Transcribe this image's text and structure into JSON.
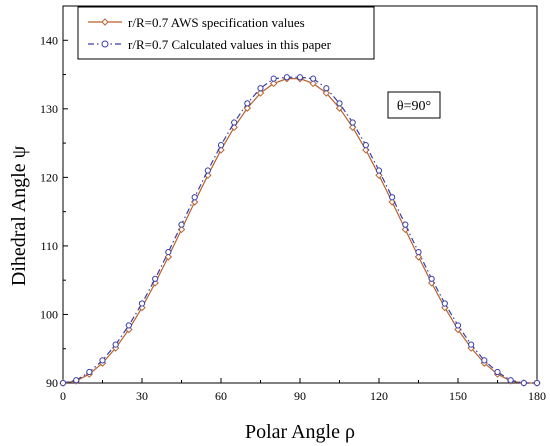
{
  "chart_data": {
    "type": "line",
    "title": "",
    "xlabel": "Polar Angle ρ",
    "ylabel": "Dihedral Angle ψ",
    "xlim": [
      0,
      180
    ],
    "ylim": [
      90,
      145
    ],
    "xticks": [
      0,
      30,
      60,
      90,
      120,
      150,
      180
    ],
    "yticks": [
      90,
      100,
      110,
      120,
      130,
      140
    ],
    "grid": false,
    "legend_position": "top-left",
    "annotation": "θ=90°",
    "series": [
      {
        "name": "r/R=0.7 AWS specification values",
        "color": "#b8612e",
        "line_style": "solid",
        "marker": "diamond",
        "x": [
          0,
          5,
          10,
          15,
          20,
          25,
          30,
          35,
          40,
          45,
          50,
          55,
          60,
          65,
          70,
          75,
          80,
          85,
          90,
          95,
          100,
          105,
          110,
          115,
          120,
          125,
          130,
          135,
          140,
          145,
          150,
          155,
          160,
          165,
          170,
          175,
          180
        ],
        "y": [
          90.0,
          90.3,
          91.3,
          92.9,
          95.1,
          97.8,
          101.0,
          104.6,
          108.4,
          112.4,
          116.4,
          120.3,
          124.0,
          127.3,
          130.1,
          132.3,
          133.7,
          134.4,
          134.4,
          133.7,
          132.3,
          130.1,
          127.3,
          124.0,
          120.3,
          116.4,
          112.4,
          108.4,
          104.6,
          101.0,
          97.8,
          95.1,
          92.9,
          91.3,
          90.3,
          90.0,
          90.0
        ]
      },
      {
        "name": "r/R=0.7 Calculated values in this paper",
        "color": "#3a3fa8",
        "line_style": "dash-dot",
        "marker": "circle",
        "x": [
          0,
          5,
          10,
          15,
          20,
          25,
          30,
          35,
          40,
          45,
          50,
          55,
          60,
          65,
          70,
          75,
          80,
          85,
          90,
          95,
          100,
          105,
          110,
          115,
          120,
          125,
          130,
          135,
          140,
          145,
          150,
          155,
          160,
          165,
          170,
          175,
          180
        ],
        "y": [
          90.0,
          90.4,
          91.6,
          93.3,
          95.6,
          98.4,
          101.6,
          105.2,
          109.1,
          113.1,
          117.1,
          121.0,
          124.7,
          128.0,
          130.8,
          133.0,
          134.4,
          134.6,
          134.6,
          134.4,
          133.0,
          130.8,
          128.0,
          124.7,
          121.0,
          117.1,
          113.1,
          109.1,
          105.2,
          101.6,
          98.4,
          95.6,
          93.3,
          91.6,
          90.4,
          90.0,
          90.0
        ]
      }
    ]
  }
}
